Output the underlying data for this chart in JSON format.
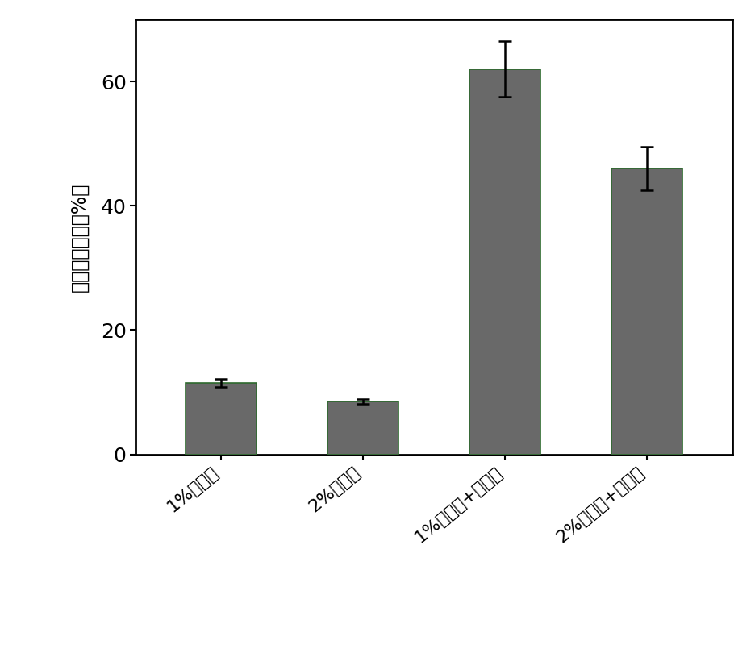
{
  "categories": [
    "1%生物炭",
    "2%生物炭",
    "1%生物炭+黑麦草",
    "2%生物炭+黑麦草"
  ],
  "values": [
    11.5,
    8.5,
    62.0,
    46.0
  ],
  "errors": [
    0.6,
    0.4,
    4.5,
    3.5
  ],
  "bar_color": "#696969",
  "bar_edgecolor": "#2d6a2d",
  "ylabel": "三氯苯降解率（%）",
  "ylim": [
    0,
    70
  ],
  "yticks": [
    0,
    20,
    40,
    60
  ],
  "background_color": "#ffffff",
  "bar_width": 0.5,
  "figsize": [
    9.36,
    8.05
  ],
  "dpi": 100,
  "x_positions": [
    0,
    1,
    2,
    3
  ]
}
